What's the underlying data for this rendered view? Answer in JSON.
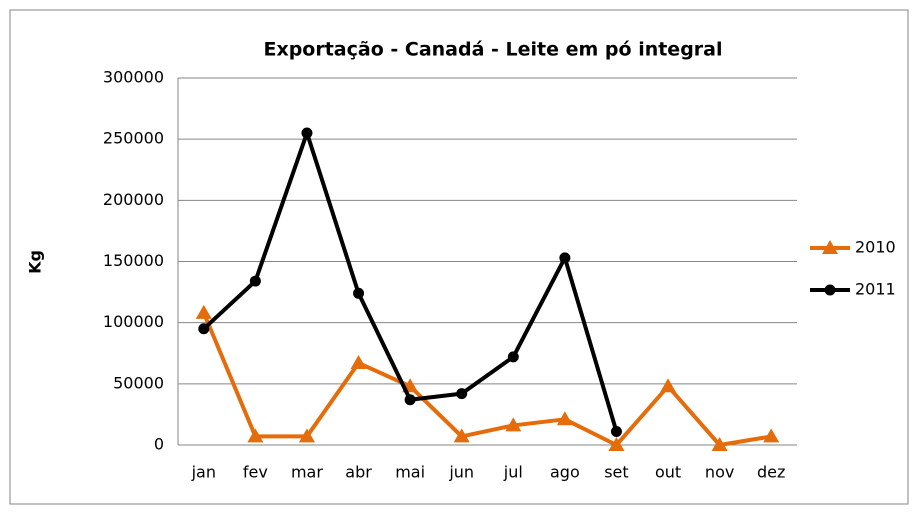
{
  "chart_data": {
    "type": "line",
    "title": "Exportação - Canadá - Leite em pó integral",
    "ylabel": "Kg",
    "categories": [
      "jan",
      "fev",
      "mar",
      "abr",
      "mai",
      "jun",
      "jul",
      "ago",
      "set",
      "out",
      "nov",
      "dez"
    ],
    "series": [
      {
        "name": "2010",
        "color": "#e46c0a",
        "marker": "triangle",
        "values": [
          108000,
          7000,
          7000,
          67000,
          48000,
          7000,
          16000,
          21000,
          0,
          48000,
          0,
          7000
        ]
      },
      {
        "name": "2011",
        "color": "#000000",
        "marker": "circle",
        "values": [
          95000,
          134000,
          255000,
          124000,
          37000,
          42000,
          72000,
          153000,
          11000,
          null,
          null,
          null
        ]
      }
    ],
    "ylim": [
      0,
      300000
    ],
    "yticks": [
      0,
      50000,
      100000,
      150000,
      200000,
      250000,
      300000
    ],
    "grid": true,
    "legend": "right"
  }
}
